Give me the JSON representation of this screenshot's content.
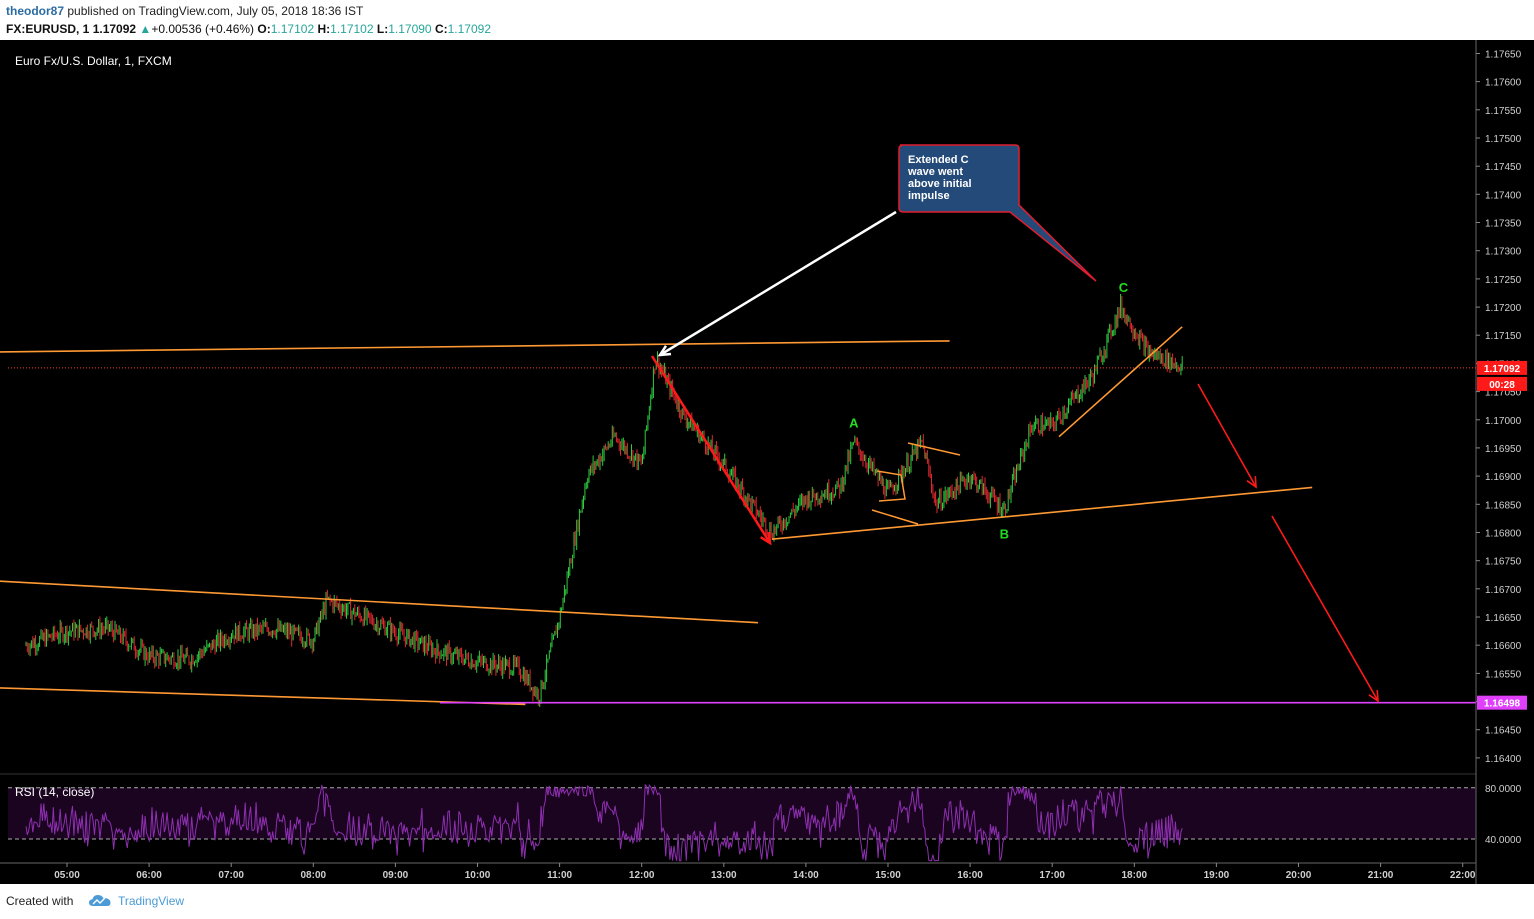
{
  "header": {
    "username": "theodor87",
    "published_text": "published on TradingView.com, July 05, 2018 18:36 IST",
    "symbol_info": "FX:EURUSD, 1",
    "last_price": "1.17092",
    "change": "+0.00536 (+0.46%)",
    "open_label": "O:",
    "open": "1.17102",
    "high_label": "H:",
    "high": "1.17102",
    "low_label": "L:",
    "low": "1.17090",
    "close_label": "C:",
    "close": "1.17092"
  },
  "chart_title": "Euro Fx/U.S. Dollar, 1, FXCM",
  "colors": {
    "background": "#000000",
    "candle_up": "#2ecc40",
    "candle_down": "#e0292f",
    "trendline": "#ff9933",
    "support_line": "#e040fb",
    "arrow_red": "#ff1a1a",
    "wave_label": "#22dd22",
    "rsi_line": "#8e2fb0",
    "rsi_band": "#1a0420",
    "callout_fill": "#244a7a",
    "callout_border": "#e01e2d"
  },
  "price_axis": {
    "ticks": [
      "1.17650",
      "1.17600",
      "1.17550",
      "1.17500",
      "1.17450",
      "1.17400",
      "1.17350",
      "1.17300",
      "1.17250",
      "1.17200",
      "1.17150",
      "1.17100",
      "1.17050",
      "1.17000",
      "1.16950",
      "1.16900",
      "1.16850",
      "1.16800",
      "1.16750",
      "1.16700",
      "1.16650",
      "1.16600",
      "1.16550",
      "1.16500",
      "1.16450",
      "1.16400"
    ],
    "current_price_label": "1.17092",
    "countdown_label": "00:28",
    "support_label": "1.16498"
  },
  "time_axis": {
    "ticks": [
      "05:00",
      "06:00",
      "07:00",
      "08:00",
      "09:00",
      "10:00",
      "11:00",
      "12:00",
      "13:00",
      "14:00",
      "15:00",
      "16:00",
      "17:00",
      "18:00",
      "19:00",
      "20:00",
      "21:00",
      "22:00"
    ]
  },
  "annotation": {
    "callout_text": [
      "Extended C",
      "wave went",
      "above initial",
      "impulse"
    ],
    "wave_a": "A",
    "wave_b": "B",
    "wave_c": "C"
  },
  "rsi": {
    "label": "RSI (14, close)",
    "ticks": [
      "80.0000",
      "40.0000"
    ]
  },
  "chart_data": {
    "type": "candlestick",
    "title": "Euro Fx/U.S. Dollar, 1, FXCM",
    "x_unit": "time (HH:MM, 1-minute bars)",
    "ylim": [
      1.16375,
      1.17665
    ],
    "current_price": 1.17092,
    "support_level": 1.16498,
    "close_path": [
      {
        "t": "04:30",
        "price": 1.166
      },
      {
        "t": "05:00",
        "price": 1.16625
      },
      {
        "t": "05:30",
        "price": 1.1663
      },
      {
        "t": "06:00",
        "price": 1.1658
      },
      {
        "t": "06:30",
        "price": 1.16575
      },
      {
        "t": "07:00",
        "price": 1.1662
      },
      {
        "t": "07:30",
        "price": 1.1663
      },
      {
        "t": "08:00",
        "price": 1.1661
      },
      {
        "t": "08:10",
        "price": 1.1668
      },
      {
        "t": "08:45",
        "price": 1.1664
      },
      {
        "t": "09:30",
        "price": 1.1659
      },
      {
        "t": "10:00",
        "price": 1.1657
      },
      {
        "t": "10:30",
        "price": 1.1656
      },
      {
        "t": "10:45",
        "price": 1.1651
      },
      {
        "t": "11:00",
        "price": 1.1665
      },
      {
        "t": "11:20",
        "price": 1.169
      },
      {
        "t": "11:40",
        "price": 1.1697
      },
      {
        "t": "12:00",
        "price": 1.1692
      },
      {
        "t": "12:10",
        "price": 1.1711
      },
      {
        "t": "12:30",
        "price": 1.1701
      },
      {
        "t": "13:00",
        "price": 1.1692
      },
      {
        "t": "13:35",
        "price": 1.168
      },
      {
        "t": "14:00",
        "price": 1.1686
      },
      {
        "t": "14:25",
        "price": 1.1688
      },
      {
        "t": "14:35",
        "price": 1.1696
      },
      {
        "t": "15:00",
        "price": 1.1687
      },
      {
        "t": "15:25",
        "price": 1.1696
      },
      {
        "t": "15:35",
        "price": 1.1685
      },
      {
        "t": "16:00",
        "price": 1.169
      },
      {
        "t": "16:25",
        "price": 1.1684
      },
      {
        "t": "16:45",
        "price": 1.1699
      },
      {
        "t": "17:00",
        "price": 1.1699
      },
      {
        "t": "17:30",
        "price": 1.1708
      },
      {
        "t": "17:50",
        "price": 1.172
      },
      {
        "t": "18:10",
        "price": 1.1712
      },
      {
        "t": "18:30",
        "price": 1.171
      },
      {
        "t": "18:36",
        "price": 1.17092
      }
    ],
    "wave_points": [
      {
        "label": "A",
        "t": "14:35",
        "price": 1.16965
      },
      {
        "label": "B",
        "t": "16:25",
        "price": 1.16828
      },
      {
        "label": "C",
        "t": "17:52",
        "price": 1.17205
      }
    ],
    "trendlines": [
      {
        "from": {
          "t": "04:00",
          "price": 1.1712
        },
        "to": {
          "t": "15:45",
          "price": 1.1714
        }
      },
      {
        "from": {
          "t": "04:00",
          "price": 1.16715
        },
        "to": {
          "t": "13:25",
          "price": 1.1664
        }
      },
      {
        "from": {
          "t": "04:00",
          "price": 1.16525
        },
        "to": {
          "t": "10:35",
          "price": 1.16495
        }
      },
      {
        "from": {
          "t": "13:35",
          "price": 1.16788
        },
        "to": {
          "t": "20:10",
          "price": 1.1688
        }
      },
      {
        "from": {
          "t": "17:05",
          "price": 1.1697
        },
        "to": {
          "t": "18:35",
          "price": 1.17165
        }
      }
    ],
    "rsi": {
      "name": "RSI (14, close)",
      "levels": [
        80,
        40
      ],
      "ylim": [
        22,
        90
      ]
    }
  }
}
